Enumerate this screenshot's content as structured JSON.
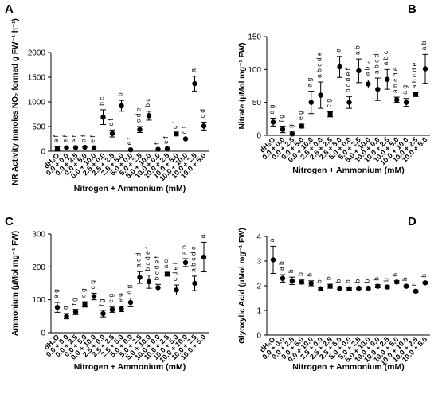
{
  "chart_data": [
    {
      "panel": "A",
      "type": "scatter",
      "ylabel": "NR Activity (nmoles NO₂ formed g FW⁻¹ h⁻¹)",
      "xlabel": "Nitrogen + Ammonium (mM)",
      "ylim": [
        0,
        2000
      ],
      "yticks": [
        0,
        500,
        1000,
        1500,
        2000
      ],
      "categories": [
        "dH₂O",
        "0.0 + 0.0",
        "0.0 + 2.5",
        "0.0 + 5.0",
        "0.0 + 10.0",
        "2.5 + 0.0",
        "2.5 + 2.5",
        "2.5 + 5.0",
        "5.0 + 0.0",
        "5.0 + 2.5",
        "5.0 + 10.0",
        "10.0 + 0.0",
        "10.0 + 2.5",
        "10.0 + 5.0",
        "10.0 + 10.0",
        "10.0 + 2.5",
        "10.0 + 5.0"
      ],
      "values": [
        50,
        70,
        75,
        80,
        70,
        690,
        360,
        920,
        30,
        440,
        720,
        40,
        50,
        350,
        250,
        1370,
        510
      ],
      "errors": [
        40,
        20,
        15,
        15,
        15,
        150,
        70,
        110,
        10,
        60,
        90,
        10,
        15,
        20,
        20,
        150,
        80
      ],
      "letters": [
        "e f",
        "e f",
        "e f",
        "e f",
        "e f",
        "b c",
        "c f",
        "b",
        "e f",
        "c d e",
        "b c",
        "f",
        "e f",
        "c f",
        "d f",
        "a",
        "c d"
      ],
      "errorbar_style": [
        "capped",
        "bar",
        "bar",
        "bar",
        "bar",
        "capped",
        "capped",
        "capped",
        "bar",
        "capped",
        "capped",
        "bar",
        "bar",
        "bar",
        "bar",
        "capped",
        "capped"
      ],
      "markers": [
        "circle",
        "circle",
        "circle",
        "circle",
        "circle",
        "circle",
        "circle",
        "circle",
        "circle",
        "circle",
        "circle",
        "circle",
        "circle",
        "square",
        "circle",
        "circle",
        "circle"
      ]
    },
    {
      "panel": "B",
      "type": "scatter",
      "ylabel": "Nitrate (µMol mg⁻¹ FW)",
      "xlabel": "Nitrogen + Ammonium (mM)",
      "ylim": [
        0,
        150
      ],
      "yticks": [
        0,
        50,
        100,
        150
      ],
      "categories": [
        "dH₂O",
        "0.0 + 0.0",
        "0.0 + 2.5",
        "0.0 + 5.0",
        "0.0 + 10.0",
        "2.5 + 0.0",
        "2.5 + 2.5",
        "2.5 + 5.0",
        "5.0 + 0.0",
        "5.0 + 2.5",
        "5.0 + 10.0",
        "10.0 + 0.0",
        "10.0 + 2.5",
        "10.0 + 5.0",
        "10.0 + 10.0",
        "10.0 + 2.5",
        "10.0 + 5.0"
      ],
      "values": [
        20,
        9,
        2,
        14,
        50,
        61,
        32,
        104,
        50,
        98,
        78,
        70,
        85,
        54,
        50,
        62,
        101
      ],
      "errors": [
        6,
        5,
        3,
        3,
        17,
        20,
        4,
        16,
        9,
        18,
        6,
        17,
        15,
        4,
        6,
        3,
        22
      ],
      "letters": [
        "d g",
        "f g",
        "g",
        "e g",
        "a g",
        "a b c d e",
        "c g",
        "a",
        "b c d e f",
        "a b",
        "a b c",
        "a b c d",
        "a b c",
        "a b c d e",
        "a g",
        "a b c d e",
        "a b"
      ],
      "errorbar_style": [
        "capped",
        "capped",
        "capped",
        "capped",
        "capped",
        "capped",
        "capped",
        "capped",
        "capped",
        "capped",
        "capped",
        "capped",
        "capped",
        "capped",
        "capped",
        "capped",
        "capped"
      ],
      "markers": [
        "circle",
        "circle",
        "circle",
        "circle",
        "circle",
        "circle",
        "square",
        "circle",
        "circle",
        "circle",
        "circle",
        "circle",
        "circle",
        "circle",
        "circle",
        "square",
        "circle"
      ]
    },
    {
      "panel": "C",
      "type": "scatter",
      "ylabel": "Ammonium (µMol mg⁻¹ FW)",
      "xlabel": "Nitrogen + Ammonium (mM)",
      "ylim": [
        0,
        300
      ],
      "yticks": [
        0,
        100,
        200,
        300
      ],
      "categories": [
        "dH₂O",
        "0.0 + 0.0",
        "0.0 + 2.5",
        "0.0 + 5.0",
        "0.0 + 10.0",
        "2.5 + 0.0",
        "2.5 + 2.5",
        "2.5 + 5.0",
        "5.0 + 0.0",
        "5.0 + 2.5",
        "5.0 + 10.0",
        "10.0 + 0.0",
        "10.0 + 2.5",
        "10.0 + 5.0",
        "10.0 + 10.0",
        "10.0 + 2.5",
        "10.0 + 5.0"
      ],
      "values": [
        77,
        50,
        63,
        86,
        110,
        58,
        70,
        72,
        92,
        168,
        155,
        137,
        178,
        130,
        213,
        150,
        230
      ],
      "errors": [
        15,
        8,
        8,
        8,
        10,
        10,
        8,
        8,
        13,
        18,
        20,
        10,
        5,
        15,
        12,
        22,
        45
      ],
      "letters": [
        "e g",
        "g",
        "f g",
        "e g",
        "c g",
        "f g",
        "e g",
        "e g",
        "d g",
        "a c d",
        "b c d e f",
        "b c d e f",
        "a c",
        "c d e f",
        "a b",
        "a b c d e",
        "a"
      ],
      "errorbar_style": [
        "capped",
        "capped",
        "capped",
        "capped",
        "capped",
        "capped",
        "capped",
        "capped",
        "capped",
        "capped",
        "capped",
        "capped",
        "capped",
        "capped",
        "capped",
        "capped",
        "capped"
      ],
      "markers": [
        "circle",
        "circle",
        "circle",
        "square",
        "circle",
        "circle",
        "circle",
        "circle",
        "circle",
        "circle",
        "circle",
        "circle",
        "square",
        "circle",
        "circle",
        "circle",
        "circle"
      ]
    },
    {
      "panel": "D",
      "type": "scatter",
      "ylabel": "Glyoxylic Acid (µMol mg⁻¹ FW)",
      "xlabel": "Nitrogen + Ammonium (mM)",
      "ylim": [
        0,
        4
      ],
      "yticks": [
        0,
        1,
        2,
        3,
        4
      ],
      "categories": [
        "dH₂O",
        "0.0 + 0.0",
        "0.0 + 2.5",
        "0.0 + 5.0",
        "0.0 + 10.0",
        "2.5 + 0.0",
        "2.5 + 2.5",
        "2.5 + 5.0",
        "5.0 + 0.0",
        "5.0 + 2.5",
        "5.0 + 10.0",
        "10.0 + 0.0",
        "10.0 + 2.5",
        "10.0 + 5.0",
        "10.0 + 10.0",
        "10.0 + 2.5",
        "10.0 + 5.0"
      ],
      "values": [
        3.05,
        2.3,
        2.2,
        2.15,
        2.1,
        1.88,
        1.98,
        1.9,
        1.88,
        1.9,
        1.9,
        1.98,
        1.95,
        2.15,
        1.98,
        1.78,
        2.12
      ],
      "errors": [
        0.55,
        0.15,
        0.15,
        0.08,
        0.1,
        0.05,
        0.08,
        0.05,
        0.05,
        0.05,
        0.05,
        0.06,
        0.05,
        0.05,
        0.05,
        0.05,
        0.05
      ],
      "letters": [
        "a",
        "a b",
        "b",
        "b",
        "b",
        "b",
        "b",
        "b",
        "b",
        "b",
        "b",
        "b",
        "b",
        "b",
        "b",
        "b",
        "b"
      ],
      "errorbar_style": [
        "capped",
        "capped",
        "capped",
        "capped",
        "capped",
        "capped",
        "capped",
        "capped",
        "capped",
        "capped",
        "capped",
        "capped",
        "capped",
        "capped",
        "capped",
        "capped",
        "capped"
      ],
      "markers": [
        "circle",
        "circle",
        "circle",
        "circle",
        "circle",
        "circle",
        "circle",
        "circle",
        "circle",
        "circle",
        "circle",
        "circle",
        "circle",
        "circle",
        "circle",
        "circle",
        "circle"
      ]
    }
  ]
}
